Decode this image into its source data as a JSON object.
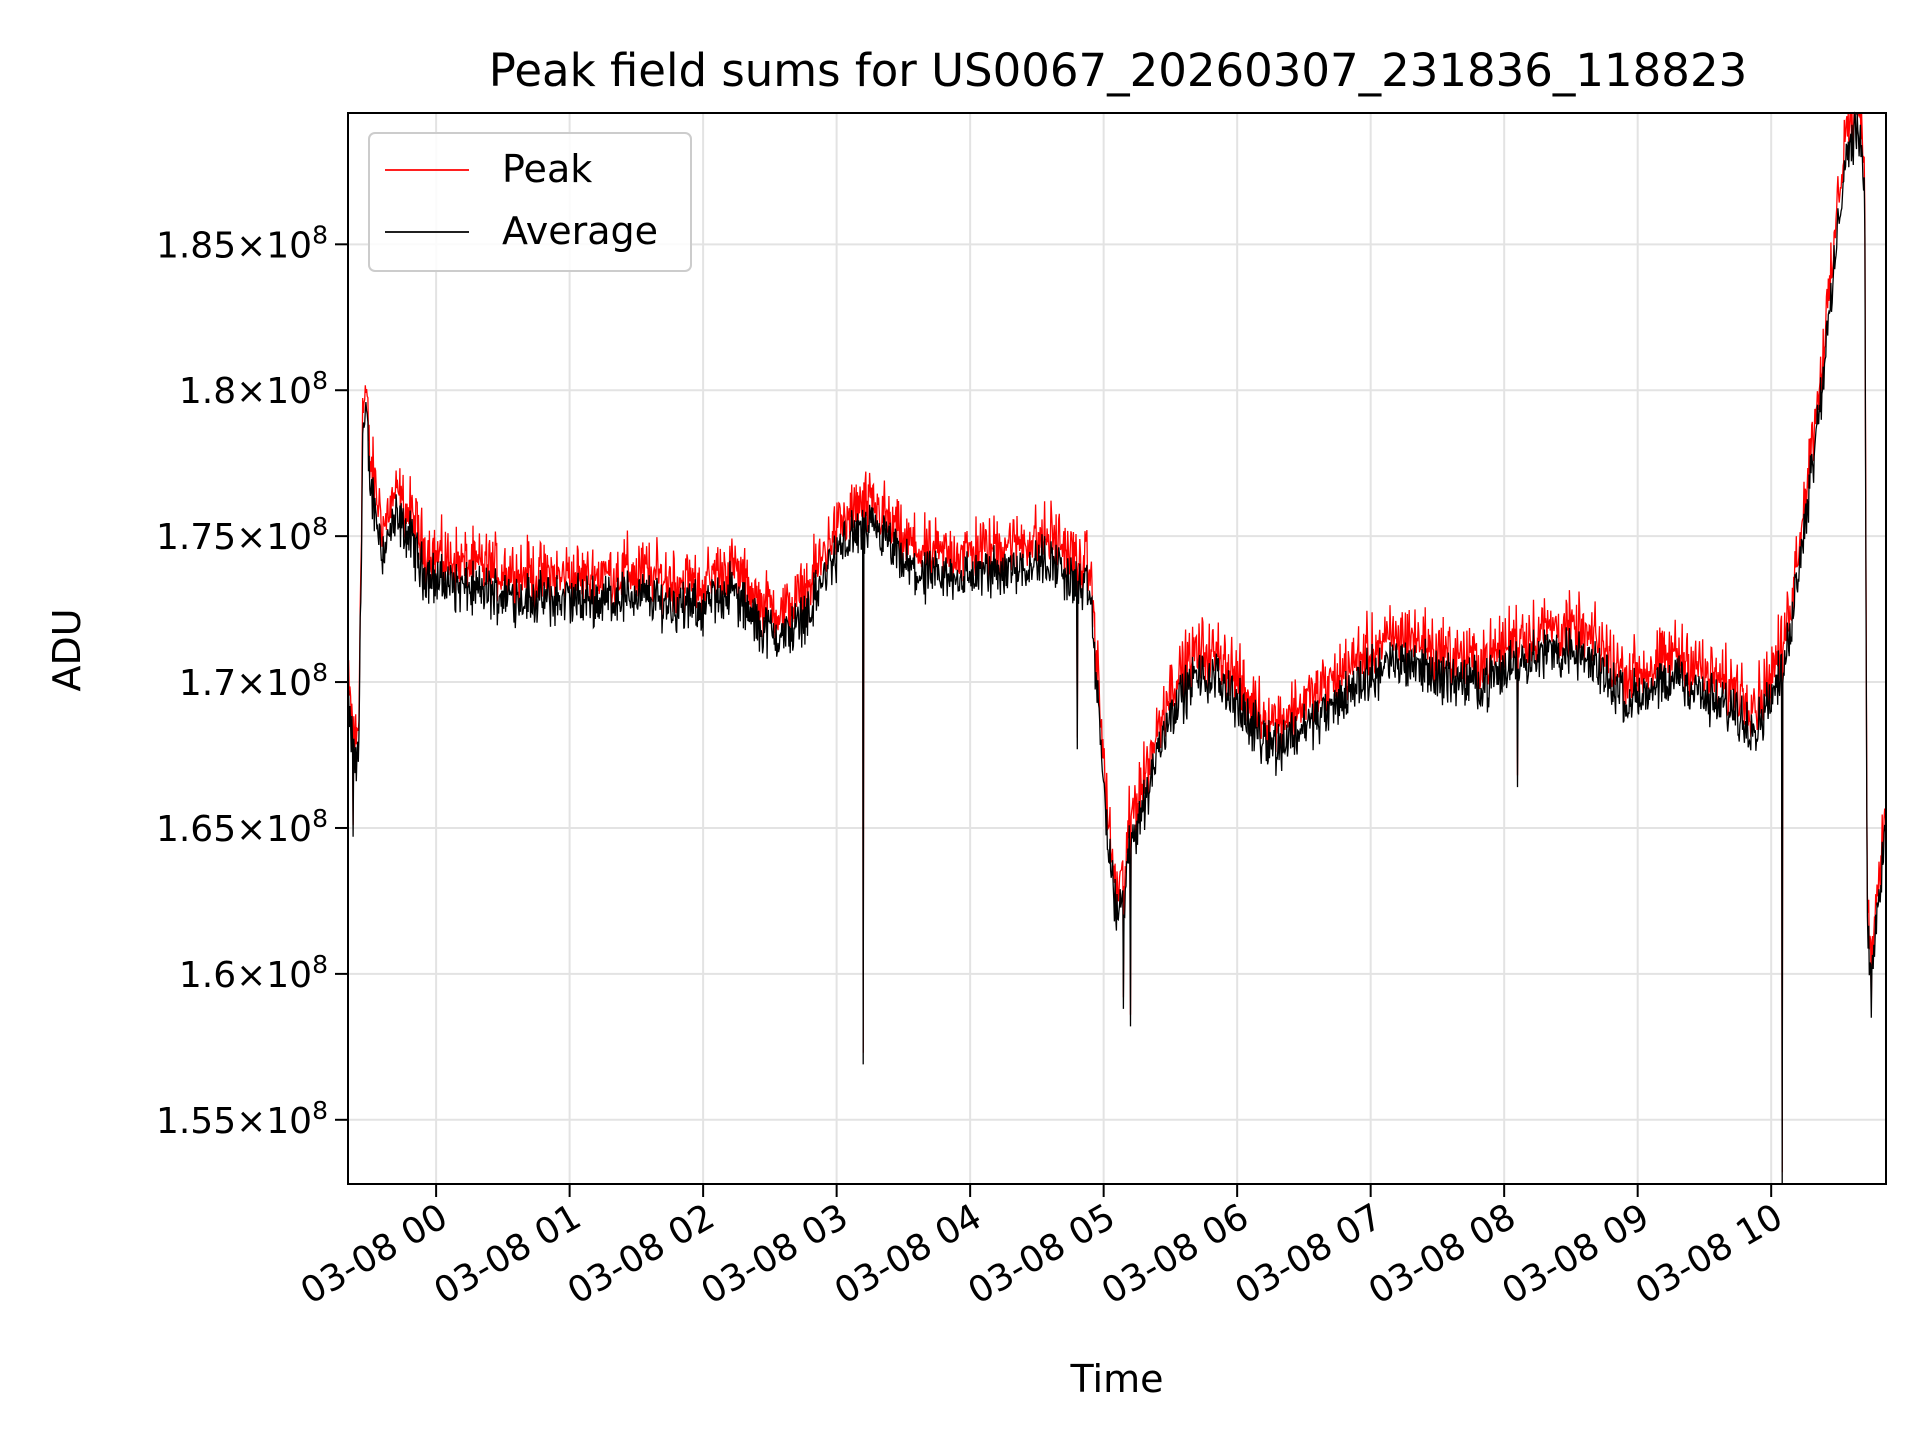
{
  "chart_data": {
    "type": "line",
    "title": "Peak field sums for US0067_20260307_231836_118823",
    "xlabel": "Time",
    "ylabel": "ADU",
    "x_unit": "hours after 2026-03-08 00:00",
    "xlim": [
      -0.66,
      10.86
    ],
    "ylim": [
      152800000,
      189500000
    ],
    "grid": true,
    "legend_position": "top-left",
    "x_tick_labels": [
      "03-08 00",
      "03-08 01",
      "03-08 02",
      "03-08 03",
      "03-08 04",
      "03-08 05",
      "03-08 06",
      "03-08 07",
      "03-08 08",
      "03-08 09",
      "03-08 10"
    ],
    "x_tick_values": [
      0,
      1,
      2,
      3,
      4,
      5,
      6,
      7,
      8,
      9,
      10
    ],
    "y_ticks": [
      {
        "value": 155000000,
        "mantissa": "1.55",
        "exp": "8"
      },
      {
        "value": 160000000,
        "mantissa": "1.6",
        "exp": "8"
      },
      {
        "value": 165000000,
        "mantissa": "1.65",
        "exp": "8"
      },
      {
        "value": 170000000,
        "mantissa": "1.7",
        "exp": "8"
      },
      {
        "value": 175000000,
        "mantissa": "1.75",
        "exp": "8"
      },
      {
        "value": 180000000,
        "mantissa": "1.8",
        "exp": "8"
      },
      {
        "value": 185000000,
        "mantissa": "1.85",
        "exp": "8"
      }
    ],
    "series": [
      {
        "name": "Peak",
        "color": "#ff0000"
      },
      {
        "name": "Average",
        "color": "#000000"
      }
    ],
    "trend": {
      "x": [
        -0.66,
        -0.6,
        -0.58,
        -0.55,
        -0.52,
        -0.5,
        -0.4,
        -0.3,
        -0.2,
        -0.1,
        0.0,
        0.2,
        0.5,
        0.8,
        1.0,
        1.2,
        1.5,
        1.8,
        2.0,
        2.2,
        2.4,
        2.6,
        2.8,
        2.95,
        3.1,
        3.3,
        3.5,
        3.7,
        3.9,
        4.1,
        4.4,
        4.6,
        4.75,
        4.9,
        5.0,
        5.05,
        5.1,
        5.15,
        5.2,
        5.3,
        5.4,
        5.5,
        5.7,
        5.9,
        6.1,
        6.3,
        6.5,
        6.7,
        6.9,
        7.1,
        7.3,
        7.5,
        7.7,
        7.9,
        8.1,
        8.3,
        8.5,
        8.7,
        8.9,
        9.1,
        9.3,
        9.5,
        9.7,
        9.9,
        10.05,
        10.15,
        10.25,
        10.35,
        10.45,
        10.55,
        10.65,
        10.7,
        10.72,
        10.75,
        10.8,
        10.86
      ],
      "y": [
        169000000,
        167000000,
        167500000,
        178500000,
        179000000,
        177000000,
        174500000,
        175500000,
        175000000,
        173800000,
        173500000,
        173200000,
        173000000,
        172800000,
        172800000,
        172800000,
        173000000,
        172600000,
        172500000,
        173200000,
        172000000,
        171500000,
        172500000,
        174000000,
        175000000,
        175200000,
        174000000,
        173500000,
        173600000,
        173700000,
        174000000,
        174200000,
        173500000,
        173000000,
        166500000,
        163500000,
        162000000,
        162500000,
        164500000,
        165800000,
        167500000,
        169000000,
        170200000,
        170000000,
        168500000,
        167800000,
        168500000,
        169000000,
        170000000,
        170500000,
        170800000,
        170200000,
        170000000,
        170000000,
        170800000,
        171000000,
        171000000,
        170500000,
        169500000,
        169500000,
        170200000,
        169500000,
        169000000,
        168500000,
        170000000,
        172000000,
        175500000,
        179000000,
        183000000,
        188000000,
        189000000,
        187000000,
        161000000,
        160500000,
        162000000,
        165500000
      ]
    },
    "spikes": [
      {
        "x": -0.62,
        "y": 164700000
      },
      {
        "x": 3.2,
        "y": 156900000
      },
      {
        "x": 4.8,
        "y": 167700000
      },
      {
        "x": 5.2,
        "y": 158200000
      },
      {
        "x": 5.15,
        "y": 158800000
      },
      {
        "x": 8.1,
        "y": 166400000
      },
      {
        "x": 10.08,
        "y": 152800000
      },
      {
        "x": 10.75,
        "y": 158500000
      }
    ]
  }
}
